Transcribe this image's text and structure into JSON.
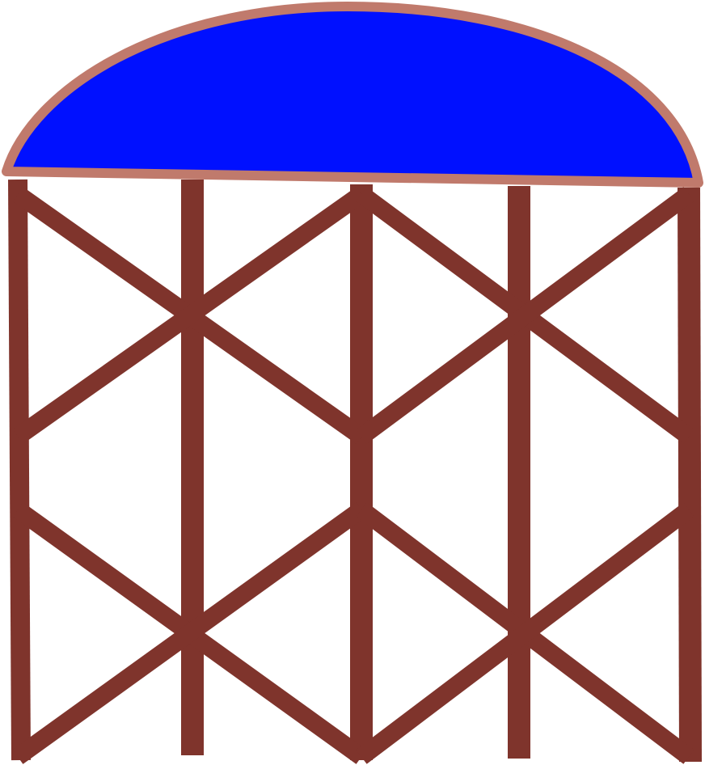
{
  "illustration": {
    "subject": "water-tower",
    "colors": {
      "tank_fill": "#0010ff",
      "tank_rim": "#c07a6c",
      "frame": "#7f342c",
      "background": "#ffffff"
    }
  }
}
